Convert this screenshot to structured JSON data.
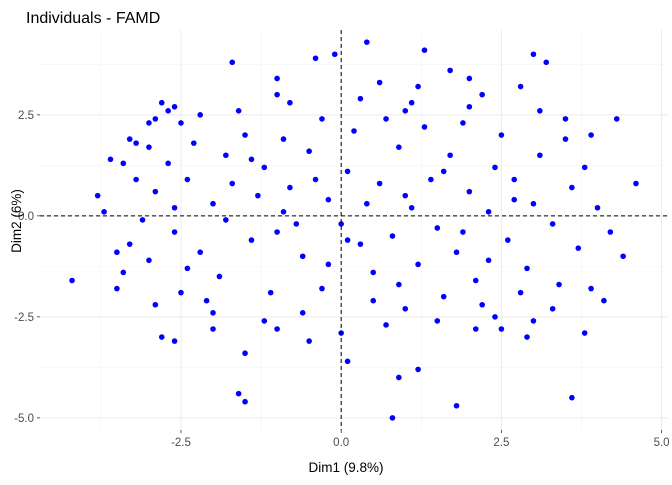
{
  "chart_data": {
    "type": "scatter",
    "title": "Individuals - FAMD",
    "xlabel": "Dim1 (9.8%)",
    "ylabel": "Dim2 (6%)",
    "xlim": [
      -4.7,
      5.1
    ],
    "ylim": [
      -5.3,
      4.6
    ],
    "x_ticks": [
      -2.5,
      0.0,
      2.5,
      5.0
    ],
    "x_tick_labels": [
      "-2.5",
      "0.0",
      "2.5",
      "5.0"
    ],
    "y_ticks": [
      -5.0,
      -2.5,
      0.0,
      2.5
    ],
    "y_tick_labels": [
      "-5.0",
      "-2.5",
      "0.0",
      "2.5"
    ],
    "reference_lines": {
      "x": 0,
      "y": 0,
      "style": "dashed"
    },
    "grid": true,
    "point_color": "#0000ff",
    "series": [
      {
        "points": [
          [
            -4.2,
            -1.6
          ],
          [
            -3.8,
            0.5
          ],
          [
            -3.6,
            1.4
          ],
          [
            -3.5,
            -1.8
          ],
          [
            -3.4,
            1.3
          ],
          [
            -3.3,
            1.9
          ],
          [
            -3.2,
            1.8
          ],
          [
            -3.0,
            2.3
          ],
          [
            -2.9,
            2.4
          ],
          [
            -2.8,
            2.8
          ],
          [
            -2.7,
            2.6
          ],
          [
            -2.6,
            2.7
          ],
          [
            -2.2,
            2.5
          ],
          [
            -1.7,
            3.8
          ],
          [
            -1.0,
            3.4
          ],
          [
            -0.4,
            3.9
          ],
          [
            -0.1,
            4.0
          ],
          [
            0.4,
            4.3
          ],
          [
            0.6,
            3.3
          ],
          [
            1.0,
            2.6
          ],
          [
            1.3,
            4.1
          ],
          [
            1.7,
            3.6
          ],
          [
            2.0,
            3.4
          ],
          [
            2.2,
            3.0
          ],
          [
            2.8,
            3.2
          ],
          [
            3.0,
            4.0
          ],
          [
            3.2,
            3.8
          ],
          [
            3.5,
            2.4
          ],
          [
            3.9,
            2.0
          ],
          [
            4.3,
            2.4
          ],
          [
            4.6,
            0.8
          ],
          [
            4.4,
            -1.0
          ],
          [
            4.1,
            -2.1
          ],
          [
            3.9,
            -1.8
          ],
          [
            3.8,
            -2.9
          ],
          [
            3.6,
            -4.5
          ],
          [
            3.0,
            -2.6
          ],
          [
            2.9,
            -3.0
          ],
          [
            2.5,
            -2.8
          ],
          [
            1.8,
            -4.7
          ],
          [
            1.2,
            -3.8
          ],
          [
            0.9,
            -4.0
          ],
          [
            0.8,
            -5.0
          ],
          [
            0.1,
            -3.6
          ],
          [
            -0.5,
            -3.1
          ],
          [
            -1.0,
            -2.8
          ],
          [
            -1.5,
            -3.4
          ],
          [
            -2.6,
            -3.1
          ],
          [
            -2.8,
            -3.0
          ],
          [
            -2.9,
            -2.2
          ],
          [
            -2.0,
            -2.4
          ],
          [
            -2.4,
            -1.3
          ],
          [
            -2.6,
            -0.4
          ],
          [
            -2.9,
            0.6
          ],
          [
            -3.1,
            -0.1
          ],
          [
            -2.4,
            0.9
          ],
          [
            -1.8,
            1.5
          ],
          [
            -1.5,
            2.0
          ],
          [
            -1.6,
            -4.4
          ],
          [
            -1.5,
            -4.6
          ],
          [
            -1.2,
            1.2
          ],
          [
            -1.0,
            -0.4
          ],
          [
            -0.8,
            0.7
          ],
          [
            -0.6,
            -1.0
          ],
          [
            -0.5,
            1.6
          ],
          [
            -0.3,
            -1.8
          ],
          [
            -0.2,
            0.4
          ],
          [
            0.0,
            -0.2
          ],
          [
            0.1,
            1.1
          ],
          [
            0.3,
            -0.7
          ],
          [
            0.4,
            0.3
          ],
          [
            0.5,
            -1.4
          ],
          [
            0.6,
            0.8
          ],
          [
            0.8,
            -0.5
          ],
          [
            0.9,
            1.7
          ],
          [
            1.1,
            0.2
          ],
          [
            1.2,
            -1.2
          ],
          [
            1.4,
            0.9
          ],
          [
            1.5,
            -0.3
          ],
          [
            1.7,
            1.5
          ],
          [
            1.8,
            -0.9
          ],
          [
            2.0,
            0.6
          ],
          [
            2.1,
            -1.6
          ],
          [
            2.3,
            0.1
          ],
          [
            2.4,
            1.2
          ],
          [
            2.6,
            -0.6
          ],
          [
            2.7,
            0.9
          ],
          [
            2.9,
            -1.3
          ],
          [
            3.0,
            0.3
          ],
          [
            3.1,
            1.5
          ],
          [
            3.3,
            -0.2
          ],
          [
            3.4,
            -1.7
          ],
          [
            3.6,
            0.7
          ],
          [
            3.7,
            -0.8
          ],
          [
            -2.2,
            -0.9
          ],
          [
            -2.0,
            0.3
          ],
          [
            -1.9,
            -1.5
          ],
          [
            -1.7,
            0.8
          ],
          [
            -1.4,
            -0.6
          ],
          [
            -1.3,
            0.5
          ],
          [
            -1.1,
            -1.9
          ],
          [
            -0.9,
            1.9
          ],
          [
            -0.7,
            -0.2
          ],
          [
            -0.4,
            0.9
          ],
          [
            -0.2,
            -1.2
          ],
          [
            0.2,
            2.1
          ],
          [
            0.5,
            -2.1
          ],
          [
            0.7,
            2.4
          ],
          [
            1.0,
            -2.3
          ],
          [
            1.3,
            2.2
          ],
          [
            1.6,
            -2.0
          ],
          [
            1.9,
            2.3
          ],
          [
            2.2,
            -2.2
          ],
          [
            2.5,
            2.0
          ],
          [
            2.8,
            -1.9
          ],
          [
            -3.3,
            -0.7
          ],
          [
            -3.0,
            -1.1
          ],
          [
            -2.7,
            1.3
          ],
          [
            -2.5,
            -1.9
          ],
          [
            -2.3,
            1.8
          ],
          [
            -2.1,
            -2.1
          ],
          [
            -1.6,
            2.6
          ],
          [
            -1.2,
            -2.6
          ],
          [
            -0.8,
            2.8
          ],
          [
            -0.6,
            -2.4
          ],
          [
            0.3,
            2.9
          ],
          [
            0.7,
            -2.7
          ],
          [
            1.1,
            2.8
          ],
          [
            1.5,
            -2.6
          ],
          [
            2.0,
            2.7
          ],
          [
            2.4,
            -2.5
          ],
          [
            -3.7,
            0.1
          ],
          [
            -3.5,
            -0.9
          ],
          [
            -3.2,
            0.9
          ],
          [
            3.8,
            1.2
          ],
          [
            4.0,
            0.2
          ],
          [
            4.2,
            -0.4
          ],
          [
            3.5,
            1.9
          ],
          [
            3.3,
            -2.3
          ],
          [
            -1.8,
            -0.1
          ],
          [
            -0.9,
            0.1
          ],
          [
            0.1,
            -0.6
          ],
          [
            1.0,
            0.5
          ],
          [
            1.9,
            -0.4
          ],
          [
            2.7,
            0.4
          ],
          [
            -2.6,
            0.2
          ],
          [
            -1.4,
            1.4
          ],
          [
            -0.3,
            2.4
          ],
          [
            0.9,
            -1.7
          ],
          [
            1.6,
            1.1
          ],
          [
            2.3,
            -1.1
          ],
          [
            -3.0,
            1.7
          ],
          [
            -2.0,
            -2.8
          ],
          [
            -1.0,
            3.0
          ],
          [
            0.0,
            -2.9
          ],
          [
            1.2,
            3.2
          ],
          [
            2.1,
            -2.8
          ],
          [
            3.1,
            2.6
          ],
          [
            -3.4,
            -1.4
          ],
          [
            -2.5,
            2.3
          ]
        ]
      }
    ]
  }
}
